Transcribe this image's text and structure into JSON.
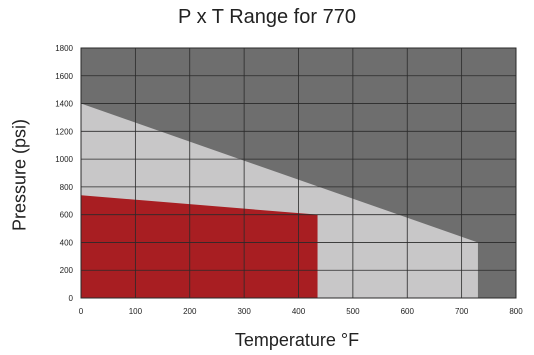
{
  "chart_data": {
    "type": "area",
    "title": "P x T Range for 770",
    "xlabel": "Temperature °F",
    "ylabel": "Pressure (psi)",
    "xlim": [
      0,
      800
    ],
    "ylim": [
      0,
      1800
    ],
    "x_ticks": [
      0,
      100,
      200,
      300,
      400,
      500,
      600,
      700,
      800
    ],
    "y_ticks": [
      0,
      200,
      400,
      600,
      800,
      1000,
      1200,
      1400,
      1600,
      1800
    ],
    "grid": true,
    "series": [
      {
        "points": [
          [
            0,
            1400
          ],
          [
            730,
            400
          ],
          [
            730,
            0
          ],
          [
            0,
            0
          ]
        ],
        "color": "#c8c7c8"
      },
      {
        "points": [
          [
            0,
            740
          ],
          [
            435,
            600
          ],
          [
            435,
            0
          ],
          [
            0,
            0
          ]
        ],
        "color": "#a81e22"
      }
    ],
    "background_color": "#6e6e6e",
    "grid_color": "#2a2a2a"
  }
}
